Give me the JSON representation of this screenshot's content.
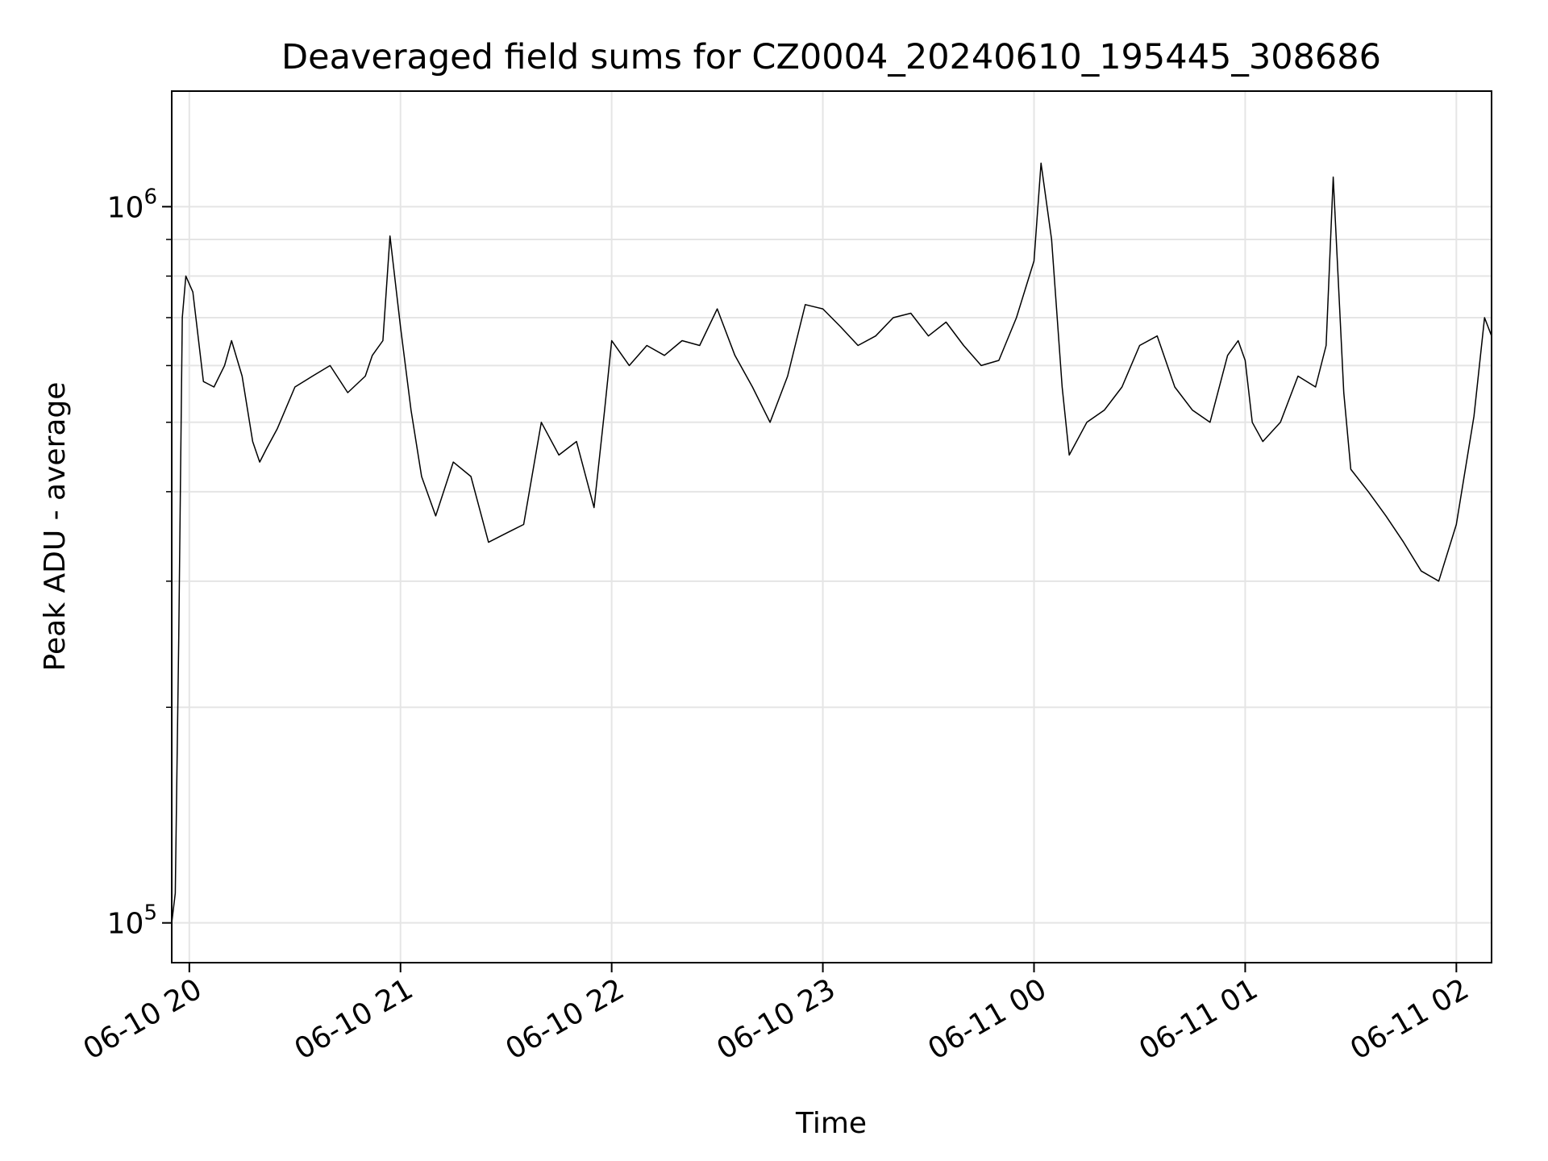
{
  "chart_data": {
    "type": "line",
    "title": "Deaveraged field sums for CZ0004_20240610_195445_308686",
    "xlabel": "Time",
    "ylabel": "Peak ADU - average",
    "yscale": "log",
    "ylim": [
      88000,
      1450000
    ],
    "xlim": [
      "2024-06-10 19:55",
      "2024-06-11 02:10"
    ],
    "grid": true,
    "line_color": "#000000",
    "x_ticks": [
      "06-10 20",
      "06-10 21",
      "06-10 22",
      "06-10 23",
      "06-11 00",
      "06-11 01",
      "06-11 02"
    ],
    "x_tick_values": [
      "2024-06-10 20:00",
      "2024-06-10 21:00",
      "2024-06-10 22:00",
      "2024-06-10 23:00",
      "2024-06-11 00:00",
      "2024-06-11 01:00",
      "2024-06-11 02:00"
    ],
    "y_ticks": [
      {
        "base": "10",
        "exp": "5",
        "value": 100000
      },
      {
        "base": "10",
        "exp": "6",
        "value": 1000000
      }
    ],
    "series": [
      {
        "x": [
          "2024-06-10 19:55",
          "2024-06-10 19:56",
          "2024-06-10 19:57",
          "2024-06-10 19:58",
          "2024-06-10 19:59",
          "2024-06-10 20:01",
          "2024-06-10 20:04",
          "2024-06-10 20:07",
          "2024-06-10 20:10",
          "2024-06-10 20:12",
          "2024-06-10 20:15",
          "2024-06-10 20:18",
          "2024-06-10 20:20",
          "2024-06-10 20:22",
          "2024-06-10 20:25",
          "2024-06-10 20:30",
          "2024-06-10 20:35",
          "2024-06-10 20:40",
          "2024-06-10 20:45",
          "2024-06-10 20:50",
          "2024-06-10 20:52",
          "2024-06-10 20:55",
          "2024-06-10 20:57",
          "2024-06-10 21:00",
          "2024-06-10 21:03",
          "2024-06-10 21:06",
          "2024-06-10 21:10",
          "2024-06-10 21:15",
          "2024-06-10 21:20",
          "2024-06-10 21:25",
          "2024-06-10 21:30",
          "2024-06-10 21:35",
          "2024-06-10 21:40",
          "2024-06-10 21:45",
          "2024-06-10 21:50",
          "2024-06-10 21:55",
          "2024-06-10 21:58",
          "2024-06-10 22:00",
          "2024-06-10 22:05",
          "2024-06-10 22:10",
          "2024-06-10 22:15",
          "2024-06-10 22:20",
          "2024-06-10 22:25",
          "2024-06-10 22:30",
          "2024-06-10 22:35",
          "2024-06-10 22:40",
          "2024-06-10 22:45",
          "2024-06-10 22:50",
          "2024-06-10 22:55",
          "2024-06-10 23:00",
          "2024-06-10 23:05",
          "2024-06-10 23:10",
          "2024-06-10 23:15",
          "2024-06-10 23:20",
          "2024-06-10 23:25",
          "2024-06-10 23:30",
          "2024-06-10 23:35",
          "2024-06-10 23:40",
          "2024-06-10 23:45",
          "2024-06-10 23:50",
          "2024-06-10 23:55",
          "2024-06-11 00:00",
          "2024-06-11 00:02",
          "2024-06-11 00:05",
          "2024-06-11 00:08",
          "2024-06-11 00:10",
          "2024-06-11 00:15",
          "2024-06-11 00:20",
          "2024-06-11 00:25",
          "2024-06-11 00:30",
          "2024-06-11 00:35",
          "2024-06-11 00:40",
          "2024-06-11 00:45",
          "2024-06-11 00:50",
          "2024-06-11 00:55",
          "2024-06-11 00:58",
          "2024-06-11 01:00",
          "2024-06-11 01:02",
          "2024-06-11 01:05",
          "2024-06-11 01:10",
          "2024-06-11 01:15",
          "2024-06-11 01:20",
          "2024-06-11 01:23",
          "2024-06-11 01:25",
          "2024-06-11 01:28",
          "2024-06-11 01:30",
          "2024-06-11 01:35",
          "2024-06-11 01:40",
          "2024-06-11 01:45",
          "2024-06-11 01:50",
          "2024-06-11 01:55",
          "2024-06-11 02:00",
          "2024-06-11 02:05",
          "2024-06-11 02:08",
          "2024-06-11 02:10"
        ],
        "y": [
          100000,
          110000,
          250000,
          700000,
          800000,
          760000,
          570000,
          560000,
          600000,
          650000,
          580000,
          470000,
          440000,
          460000,
          490000,
          560000,
          580000,
          600000,
          550000,
          580000,
          620000,
          650000,
          910000,
          680000,
          520000,
          420000,
          370000,
          440000,
          420000,
          340000,
          350000,
          360000,
          500000,
          450000,
          470000,
          380000,
          520000,
          650000,
          600000,
          640000,
          620000,
          650000,
          640000,
          720000,
          620000,
          560000,
          500000,
          580000,
          730000,
          720000,
          680000,
          640000,
          660000,
          700000,
          710000,
          660000,
          690000,
          640000,
          600000,
          610000,
          700000,
          840000,
          1150000,
          900000,
          560000,
          450000,
          500000,
          520000,
          560000,
          640000,
          660000,
          560000,
          520000,
          500000,
          620000,
          650000,
          610000,
          500000,
          470000,
          500000,
          580000,
          560000,
          640000,
          1100000,
          550000,
          430000,
          400000,
          370000,
          340000,
          310000,
          300000,
          360000,
          510000,
          700000,
          660000
        ]
      }
    ]
  }
}
